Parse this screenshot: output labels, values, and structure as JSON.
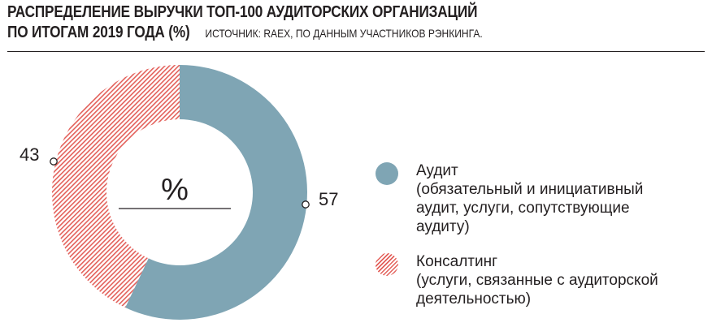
{
  "title_line1": "РАСПРЕДЕЛЕНИЕ ВЫРУЧКИ ТОП-100 АУДИТОРСКИХ ОРГАНИЗАЦИЙ",
  "title_line2": "ПО ИТОГАМ 2019 ГОДА (%)",
  "source": "ИСТОЧНИК: RAEX, ПО ДАННЫМ УЧАСТНИКОВ РЭНКИНГА.",
  "center_label": "%",
  "colors": {
    "audit": "#7fa5b4",
    "consulting": "#e3605a"
  },
  "chart_data": {
    "type": "pie",
    "title": "РАСПРЕДЕЛЕНИЕ ВЫРУЧКИ ТОП-100 АУДИТОРСКИХ ОРГАНИЗАЦИЙ ПО ИТОГАМ 2019 ГОДА (%)",
    "unit": "%",
    "categories": [
      "Аудит",
      "Консалтинг"
    ],
    "values": [
      57,
      43
    ],
    "value_labels": [
      "57",
      "43"
    ],
    "legend": [
      {
        "name": "Аудит",
        "description": "(обязательный и инициативный аудит, услуги, сопутствующие аудиту)"
      },
      {
        "name": "Консалтинг",
        "description": "(услуги, связанные с аудиторской деятельностью)"
      }
    ],
    "legend_position": "right"
  }
}
